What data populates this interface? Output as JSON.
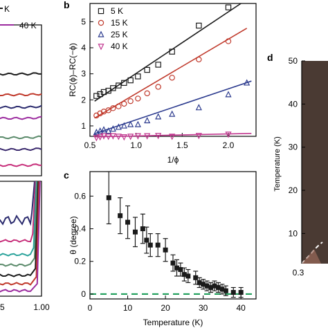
{
  "panel_labels": {
    "b": "b",
    "c": "c",
    "d": "d"
  },
  "chart_data": [
    {
      "id": "a",
      "type": "line",
      "title": "",
      "legend_items": [
        "K",
        "40 K"
      ],
      "legend_colors": [
        "#1a1a1a",
        "#9b2a9e"
      ],
      "x_tick_labels": [
        "5",
        "1.00"
      ],
      "upper_series_colors": [
        "#1a1a1a",
        "#c0392b",
        "#2b2b6e",
        "#9b2a9e",
        "#5a8a6a",
        "#3b2a6e",
        "#c72e7a"
      ],
      "lower_series_colors": [
        "#2b2b6e",
        "#c72e7a",
        "#2aa39b",
        "#5a8a6a",
        "#1a1a1a",
        "#c0392b",
        "#9b2a9e"
      ]
    },
    {
      "id": "b",
      "type": "scatter",
      "xlabel": "1/ϕ",
      "ylabel": "RC(ϕ)–RC(−ϕ)",
      "xlim": [
        0.5,
        2.3
      ],
      "ylim": [
        0.6,
        5.7
      ],
      "x_ticks": [
        0.5,
        1.0,
        1.5,
        2.0
      ],
      "x_tick_labels": [
        "0.5",
        "1.0",
        "1.5",
        "2.0"
      ],
      "y_ticks": [
        1,
        2,
        3,
        4,
        5
      ],
      "y_tick_labels": [
        "1",
        "2",
        "3",
        "4",
        "5"
      ],
      "legend_position": "top-left",
      "series": [
        {
          "name": "5 K",
          "color": "#1a1a1a",
          "marker": "square",
          "x": [
            0.57,
            0.61,
            0.65,
            0.7,
            0.75,
            0.81,
            0.87,
            0.94,
            1.02,
            1.12,
            1.24,
            1.39,
            1.68,
            2.0
          ],
          "y": [
            2.15,
            2.22,
            2.3,
            2.35,
            2.45,
            2.55,
            2.65,
            2.75,
            2.9,
            3.15,
            3.35,
            3.85,
            4.85,
            5.55
          ],
          "fit": [
            [
              0.55,
              1.95
            ],
            [
              2.2,
              5.85
            ]
          ]
        },
        {
          "name": "15 K",
          "color": "#c0392b",
          "marker": "circle",
          "x": [
            0.57,
            0.61,
            0.65,
            0.7,
            0.75,
            0.81,
            0.87,
            0.94,
            1.02,
            1.12,
            1.24,
            1.39,
            1.68,
            2.0
          ],
          "y": [
            1.4,
            1.48,
            1.55,
            1.6,
            1.68,
            1.75,
            1.85,
            1.95,
            2.05,
            2.25,
            2.5,
            2.85,
            3.55,
            4.25
          ],
          "fit": [
            [
              0.55,
              1.3
            ],
            [
              2.2,
              4.75
            ]
          ]
        },
        {
          "name": "25 K",
          "color": "#2b3a8e",
          "marker": "triangle-up",
          "x": [
            0.57,
            0.61,
            0.65,
            0.7,
            0.75,
            0.81,
            0.87,
            0.94,
            1.02,
            1.12,
            1.24,
            1.39,
            1.68,
            2.0,
            2.2
          ],
          "y": [
            0.75,
            0.8,
            0.85,
            0.8,
            0.88,
            0.95,
            1.0,
            1.05,
            1.05,
            1.2,
            1.35,
            1.45,
            1.7,
            2.2,
            2.65
          ],
          "fit": [
            [
              0.55,
              0.7
            ],
            [
              2.25,
              2.72
            ]
          ]
        },
        {
          "name": "40 K",
          "color": "#c2378f",
          "marker": "triangle-down",
          "x": [
            0.57,
            0.61,
            0.65,
            0.7,
            0.75,
            0.81,
            0.87,
            0.94,
            1.02,
            1.12,
            1.24,
            1.39,
            1.68,
            2.0
          ],
          "y": [
            0.55,
            0.58,
            0.62,
            0.6,
            0.62,
            0.6,
            0.58,
            0.6,
            0.62,
            0.62,
            0.63,
            0.6,
            0.63,
            0.68
          ],
          "fit": [
            [
              0.55,
              0.58
            ],
            [
              2.25,
              0.71
            ]
          ]
        }
      ]
    },
    {
      "id": "c",
      "type": "scatter",
      "xlabel": "Temperature (K)",
      "ylabel": "θ (degree)",
      "xlim": [
        0,
        44
      ],
      "ylim": [
        -0.03,
        0.75
      ],
      "x_ticks": [
        0,
        10,
        20,
        30,
        40
      ],
      "x_tick_labels": [
        "0",
        "10",
        "20",
        "30",
        "40"
      ],
      "y_ticks": [
        0,
        0.2,
        0.4,
        0.6
      ],
      "y_tick_labels": [
        "0",
        "0.2",
        "0.4",
        "0.6"
      ],
      "baseline": {
        "y": 0,
        "color": "#1e9e5a",
        "style": "dashed"
      },
      "series": [
        {
          "name": "",
          "color": "#1a1a1a",
          "marker": "square",
          "x": [
            5,
            8,
            10,
            12,
            14,
            15,
            16,
            18,
            20,
            22,
            23,
            24,
            25,
            26,
            28,
            29,
            30,
            31,
            32,
            33,
            34,
            35,
            36,
            38,
            40
          ],
          "y": [
            0.59,
            0.48,
            0.44,
            0.38,
            0.4,
            0.33,
            0.3,
            0.3,
            0.27,
            0.19,
            0.16,
            0.15,
            0.12,
            0.11,
            0.1,
            0.07,
            0.06,
            0.05,
            0.04,
            0.05,
            0.04,
            0.03,
            0.02,
            0.01,
            0.01
          ],
          "err": [
            0.16,
            0.11,
            0.1,
            0.09,
            0.09,
            0.08,
            0.07,
            0.07,
            0.07,
            0.05,
            0.05,
            0.04,
            0.04,
            0.04,
            0.04,
            0.03,
            0.03,
            0.03,
            0.03,
            0.03,
            0.03,
            0.03,
            0.03,
            0.03,
            0.03
          ]
        }
      ]
    },
    {
      "id": "d",
      "type": "heatmap",
      "ylabel": "Temperature (K)",
      "ylim": [
        3,
        50
      ],
      "y_ticks": [
        10,
        20,
        30,
        40,
        50
      ],
      "y_tick_labels": [
        "10",
        "20",
        "30",
        "40",
        "50"
      ],
      "x_tick_labels": [
        "0.3"
      ],
      "fill_color": "#4a3a33"
    }
  ]
}
